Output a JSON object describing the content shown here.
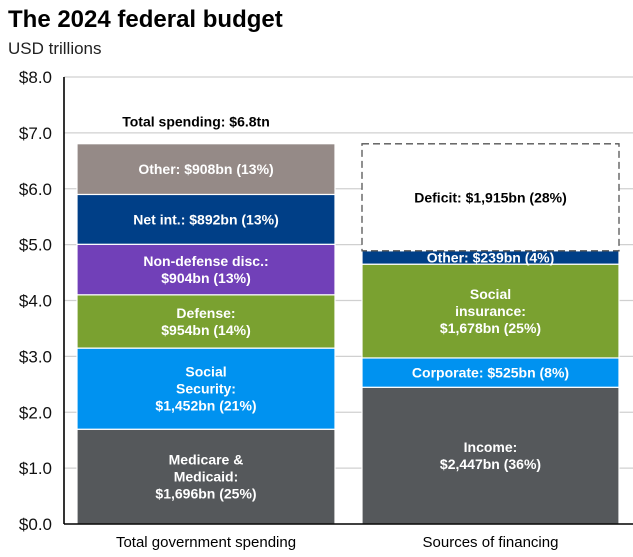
{
  "chart_data": {
    "type": "bar",
    "stacked": true,
    "title": "The 2024 federal budget",
    "subtitle": "USD trillions",
    "xlabel": "",
    "ylabel": "",
    "ylim": [
      0,
      8
    ],
    "yticks": [
      0,
      1,
      2,
      3,
      4,
      5,
      6,
      7,
      8
    ],
    "ytick_labels": [
      "$0.0",
      "$1.0",
      "$2.0",
      "$3.0",
      "$4.0",
      "$5.0",
      "$6.0",
      "$7.0",
      "$8.0"
    ],
    "grid": true,
    "categories": [
      "Total government spending",
      "Sources of financing"
    ],
    "total_annotation": "Total spending: $6.8tn",
    "bars": [
      {
        "category": "Total government spending",
        "segments": [
          {
            "name": "Medicare & Medicaid",
            "value": 1.696,
            "label": [
              "Medicare &",
              "Medicaid:",
              "$1,696bn (25%)"
            ],
            "color": "#55585b",
            "dashed": false
          },
          {
            "name": "Social Security",
            "value": 1.452,
            "label": [
              "Social",
              "Security:",
              "$1,452bn (21%)"
            ],
            "color": "#0092f0",
            "dashed": false
          },
          {
            "name": "Defense",
            "value": 0.954,
            "label": [
              "Defense:",
              "$954bn (14%)"
            ],
            "color": "#7aa130",
            "dashed": false
          },
          {
            "name": "Non-defense disc.",
            "value": 0.904,
            "label": [
              "Non-defense disc.:",
              "$904bn (13%)"
            ],
            "color": "#7140b8",
            "dashed": false
          },
          {
            "name": "Net int.",
            "value": 0.892,
            "label": [
              "Net int.: $892bn (13%)"
            ],
            "color": "#003f87",
            "dashed": false
          },
          {
            "name": "Other",
            "value": 0.908,
            "label": [
              "Other: $908bn (13%)"
            ],
            "color": "#958a87",
            "dashed": false
          }
        ]
      },
      {
        "category": "Sources of financing",
        "segments": [
          {
            "name": "Income",
            "value": 2.447,
            "label": [
              "Income:",
              "$2,447bn (36%)"
            ],
            "color": "#55585b",
            "dashed": false
          },
          {
            "name": "Corporate",
            "value": 0.525,
            "label": [
              "Corporate: $525bn (8%)"
            ],
            "color": "#0092f0",
            "dashed": false
          },
          {
            "name": "Social insurance",
            "value": 1.678,
            "label": [
              "Social",
              "insurance:",
              "$1,678bn (25%)"
            ],
            "color": "#7aa130",
            "dashed": false
          },
          {
            "name": "Other",
            "value": 0.239,
            "label": [
              "Other: $239bn (4%)"
            ],
            "color": "#003f87",
            "dashed": false
          },
          {
            "name": "Deficit",
            "value": 1.915,
            "label": [
              "Deficit: $1,915bn (28%)"
            ],
            "color": "#ffffff",
            "dashed": true
          }
        ]
      }
    ]
  }
}
